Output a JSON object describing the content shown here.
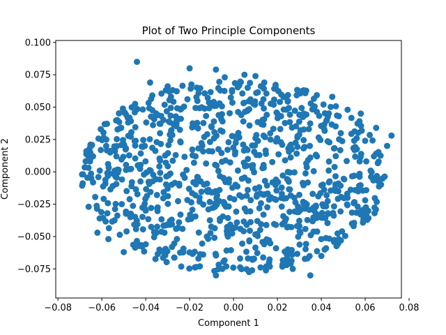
{
  "chart_data": {
    "type": "scatter",
    "title": "Plot of Two Principle Components",
    "xlabel": "Component 1",
    "ylabel": "Component 2",
    "xlim": [
      -0.081,
      0.0765
    ],
    "ylim": [
      -0.0975,
      0.1015
    ],
    "xticks": [
      -0.08,
      -0.06,
      -0.04,
      -0.02,
      0.0,
      0.02,
      0.04,
      0.06,
      0.08
    ],
    "xtick_labels": [
      "−0.08",
      "−0.06",
      "−0.04",
      "−0.02",
      "0.00",
      "0.02",
      "0.04",
      "0.06",
      "0.08"
    ],
    "yticks": [
      -0.075,
      -0.05,
      -0.025,
      0.0,
      0.025,
      0.05,
      0.075,
      0.1
    ],
    "ytick_labels": [
      "−0.075",
      "−0.050",
      "−0.025",
      "0.000",
      "0.025",
      "0.050",
      "0.075",
      "0.100"
    ],
    "grid": false,
    "legend": "none",
    "marker_color": "#1f77b4",
    "point_count": 1000,
    "points": [
      [
        -0.044,
        0.085
      ],
      [
        -0.02,
        0.08
      ],
      [
        -0.008,
        0.079
      ],
      [
        0.005,
        0.075
      ],
      [
        0.01,
        0.074
      ],
      [
        -0.038,
        0.069
      ],
      [
        -0.004,
        0.073
      ],
      [
        0.014,
        0.069
      ],
      [
        -0.03,
        0.066
      ],
      [
        0.032,
        0.063
      ],
      [
        0.045,
        0.058
      ],
      [
        0.052,
        0.048
      ],
      [
        0.058,
        0.045
      ],
      [
        0.065,
        0.034
      ],
      [
        0.07,
        0.02
      ],
      [
        0.072,
        0.028
      ],
      [
        0.068,
        -0.005
      ],
      [
        0.064,
        0.012
      ],
      [
        0.06,
        -0.022
      ],
      [
        0.054,
        -0.04
      ],
      [
        0.048,
        -0.052
      ],
      [
        0.04,
        -0.065
      ],
      [
        0.035,
        -0.08
      ],
      [
        0.027,
        -0.075
      ],
      [
        0.015,
        -0.073
      ],
      [
        0.003,
        -0.067
      ],
      [
        -0.008,
        -0.08
      ],
      [
        -0.016,
        -0.067
      ],
      [
        -0.028,
        -0.058
      ],
      [
        -0.04,
        -0.056
      ],
      [
        -0.05,
        -0.062
      ],
      [
        -0.057,
        -0.052
      ],
      [
        -0.061,
        -0.036
      ],
      [
        -0.066,
        -0.027
      ],
      [
        -0.069,
        -0.002
      ],
      [
        -0.064,
        0.012
      ],
      [
        -0.058,
        0.02
      ],
      [
        -0.053,
        0.04
      ],
      [
        -0.045,
        0.046
      ],
      [
        -0.037,
        0.059
      ],
      [
        -0.062,
        -0.047
      ],
      [
        -0.055,
        -0.011
      ],
      [
        -0.049,
        0.018
      ],
      [
        -0.047,
        -0.035
      ],
      [
        0.041,
        0.052
      ],
      [
        0.048,
        0.043
      ],
      [
        0.055,
        -0.003
      ],
      [
        0.06,
        0.024
      ],
      [
        0.058,
        -0.033
      ],
      [
        0.052,
        -0.02
      ],
      [
        -0.024,
        0.041
      ],
      [
        -0.012,
        0.029
      ],
      [
        0.02,
        0.045
      ],
      [
        0.025,
        0.018
      ],
      [
        -0.03,
        -0.013
      ],
      [
        -0.018,
        0.007
      ],
      [
        0.006,
        -0.041
      ],
      [
        0.022,
        -0.017
      ],
      [
        0.038,
        0.012
      ],
      [
        -0.005,
        0.039
      ],
      [
        -0.035,
        0.023
      ],
      [
        0.01,
        0.026
      ],
      [
        0.03,
        -0.042
      ],
      [
        -0.04,
        -0.03
      ],
      [
        0.002,
        0.001
      ]
    ]
  }
}
